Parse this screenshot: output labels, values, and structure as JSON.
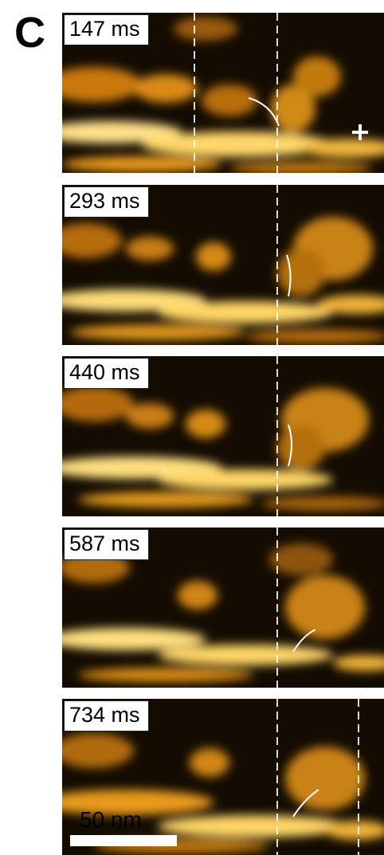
{
  "panel_letter": "C",
  "frames": [
    {
      "time_label": "147 ms"
    },
    {
      "time_label": "293 ms"
    },
    {
      "time_label": "440 ms"
    },
    {
      "time_label": "587 ms"
    },
    {
      "time_label": "734 ms"
    }
  ],
  "scale_bar": {
    "label": "50 nm"
  },
  "colors": {
    "background": "#140c02",
    "bright": "#ffe79a",
    "mid": "#e89a1a",
    "dark": "#3a2206",
    "overlay": "#ffffff"
  },
  "icons": {
    "crosshair": "plus-marker-icon"
  }
}
